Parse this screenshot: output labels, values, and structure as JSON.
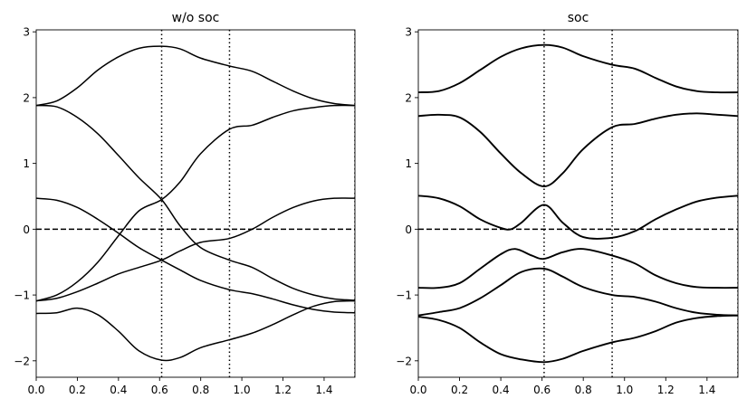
{
  "chart_data": [
    {
      "type": "line",
      "title": "w/o soc",
      "xlim": [
        0.0,
        1.55
      ],
      "ylim": [
        -2.25,
        3.03
      ],
      "xticks": [
        0.0,
        0.2,
        0.4,
        0.6,
        0.8,
        1.0,
        1.2,
        1.4
      ],
      "xtick_labels": [
        "0.0",
        "0.2",
        "0.4",
        "0.6",
        "0.8",
        "1.0",
        "1.2",
        "1.4"
      ],
      "yticks": [
        -2,
        -1,
        0,
        1,
        2,
        3
      ],
      "ytick_labels": [
        "−2",
        "−1",
        "0",
        "1",
        "2",
        "3"
      ],
      "vlines": [
        0.61,
        0.94,
        1.55
      ],
      "vline_style": "dotted",
      "hline": 0.0,
      "hline_style": "dashed",
      "grid": false,
      "color": "#000000",
      "series": [
        {
          "x": [
            0,
            0.1,
            0.2,
            0.3,
            0.4,
            0.5,
            0.61,
            0.7,
            0.8,
            0.94,
            1.05,
            1.15,
            1.25,
            1.35,
            1.45,
            1.55
          ],
          "values": [
            1.88,
            1.95,
            2.15,
            2.42,
            2.62,
            2.75,
            2.78,
            2.74,
            2.6,
            2.48,
            2.4,
            2.25,
            2.1,
            1.98,
            1.91,
            1.88
          ]
        },
        {
          "x": [
            0,
            0.1,
            0.2,
            0.3,
            0.4,
            0.5,
            0.61,
            0.7,
            0.8,
            0.94,
            1.05,
            1.15,
            1.25,
            1.35,
            1.45,
            1.55
          ],
          "values": [
            1.88,
            1.86,
            1.7,
            1.45,
            1.12,
            0.78,
            0.45,
            0.05,
            -0.28,
            -0.47,
            -0.58,
            -0.75,
            -0.9,
            -1.0,
            -1.06,
            -1.08
          ]
        },
        {
          "x": [
            0,
            0.1,
            0.2,
            0.3,
            0.4,
            0.5,
            0.61,
            0.7,
            0.8,
            0.94,
            1.05,
            1.15,
            1.25,
            1.35,
            1.45,
            1.55
          ],
          "values": [
            0.47,
            0.44,
            0.33,
            0.15,
            -0.06,
            -0.28,
            -0.47,
            -0.62,
            -0.78,
            -0.92,
            -0.98,
            -1.06,
            -1.15,
            -1.22,
            -1.26,
            -1.27
          ]
        },
        {
          "x": [
            0,
            0.1,
            0.2,
            0.3,
            0.4,
            0.5,
            0.61,
            0.7,
            0.8,
            0.94,
            1.05,
            1.15,
            1.25,
            1.35,
            1.45,
            1.55
          ],
          "values": [
            -1.09,
            -1.0,
            -0.8,
            -0.5,
            -0.1,
            0.28,
            0.45,
            0.72,
            1.15,
            1.52,
            1.58,
            1.7,
            1.8,
            1.85,
            1.88,
            1.88
          ]
        },
        {
          "x": [
            0,
            0.1,
            0.2,
            0.3,
            0.4,
            0.5,
            0.61,
            0.7,
            0.8,
            0.94,
            1.05,
            1.15,
            1.25,
            1.35,
            1.45,
            1.55
          ],
          "values": [
            -1.09,
            -1.05,
            -0.95,
            -0.82,
            -0.68,
            -0.58,
            -0.47,
            -0.33,
            -0.2,
            -0.14,
            0.0,
            0.18,
            0.33,
            0.43,
            0.47,
            0.47
          ]
        },
        {
          "x": [
            0,
            0.1,
            0.2,
            0.3,
            0.4,
            0.5,
            0.61,
            0.7,
            0.8,
            0.94,
            1.05,
            1.15,
            1.25,
            1.35,
            1.45,
            1.55
          ],
          "values": [
            -1.28,
            -1.27,
            -1.2,
            -1.3,
            -1.55,
            -1.85,
            -1.99,
            -1.95,
            -1.8,
            -1.68,
            -1.58,
            -1.45,
            -1.3,
            -1.17,
            -1.1,
            -1.09
          ]
        }
      ]
    },
    {
      "type": "line",
      "title": "soc",
      "xlim": [
        0.0,
        1.55
      ],
      "ylim": [
        -2.25,
        3.03
      ],
      "xticks": [
        0.0,
        0.2,
        0.4,
        0.6,
        0.8,
        1.0,
        1.2,
        1.4
      ],
      "xtick_labels": [
        "0.0",
        "0.2",
        "0.4",
        "0.6",
        "0.8",
        "1.0",
        "1.2",
        "1.4"
      ],
      "yticks": [
        -2,
        -1,
        0,
        1,
        2,
        3
      ],
      "ytick_labels": [
        "−2",
        "−1",
        "0",
        "1",
        "2",
        "3"
      ],
      "vlines": [
        0.61,
        0.94,
        1.55
      ],
      "vline_style": "dotted",
      "hline": 0.0,
      "hline_style": "dashed",
      "grid": false,
      "color": "#000000",
      "series": [
        {
          "x": [
            0,
            0.1,
            0.2,
            0.3,
            0.4,
            0.5,
            0.61,
            0.7,
            0.8,
            0.94,
            1.05,
            1.15,
            1.25,
            1.35,
            1.45,
            1.55
          ],
          "values": [
            2.08,
            2.1,
            2.22,
            2.42,
            2.62,
            2.75,
            2.8,
            2.76,
            2.63,
            2.5,
            2.44,
            2.3,
            2.17,
            2.1,
            2.08,
            2.08
          ]
        },
        {
          "x": [
            0,
            0.1,
            0.2,
            0.3,
            0.4,
            0.5,
            0.61,
            0.7,
            0.8,
            0.94,
            1.05,
            1.15,
            1.25,
            1.35,
            1.45,
            1.55
          ],
          "values": [
            1.72,
            1.74,
            1.7,
            1.48,
            1.15,
            0.85,
            0.65,
            0.85,
            1.22,
            1.55,
            1.6,
            1.68,
            1.74,
            1.76,
            1.74,
            1.72
          ]
        },
        {
          "x": [
            0,
            0.1,
            0.2,
            0.3,
            0.4,
            0.45,
            0.5,
            0.61,
            0.7,
            0.8,
            0.94,
            1.05,
            1.15,
            1.25,
            1.35,
            1.45,
            1.55
          ],
          "values": [
            0.51,
            0.47,
            0.35,
            0.15,
            0.02,
            0.0,
            0.1,
            0.37,
            0.1,
            -0.12,
            -0.13,
            -0.03,
            0.15,
            0.3,
            0.42,
            0.48,
            0.51
          ]
        },
        {
          "x": [
            0,
            0.1,
            0.2,
            0.3,
            0.4,
            0.47,
            0.55,
            0.61,
            0.7,
            0.8,
            0.94,
            1.05,
            1.15,
            1.25,
            1.35,
            1.45,
            1.55
          ],
          "values": [
            -0.89,
            -0.89,
            -0.82,
            -0.6,
            -0.38,
            -0.3,
            -0.4,
            -0.45,
            -0.35,
            -0.3,
            -0.4,
            -0.52,
            -0.7,
            -0.82,
            -0.88,
            -0.89,
            -0.89
          ]
        },
        {
          "x": [
            0,
            0.1,
            0.2,
            0.3,
            0.4,
            0.5,
            0.61,
            0.7,
            0.8,
            0.94,
            1.05,
            1.15,
            1.25,
            1.35,
            1.45,
            1.55
          ],
          "values": [
            -1.31,
            -1.26,
            -1.2,
            -1.05,
            -0.85,
            -0.65,
            -0.6,
            -0.72,
            -0.88,
            -1.0,
            -1.03,
            -1.1,
            -1.2,
            -1.27,
            -1.3,
            -1.31
          ]
        },
        {
          "x": [
            0,
            0.1,
            0.2,
            0.3,
            0.4,
            0.5,
            0.61,
            0.7,
            0.8,
            0.94,
            1.05,
            1.15,
            1.25,
            1.35,
            1.45,
            1.55
          ],
          "values": [
            -1.33,
            -1.38,
            -1.5,
            -1.72,
            -1.9,
            -1.98,
            -2.02,
            -1.97,
            -1.85,
            -1.72,
            -1.65,
            -1.55,
            -1.42,
            -1.35,
            -1.32,
            -1.31
          ]
        }
      ]
    }
  ]
}
